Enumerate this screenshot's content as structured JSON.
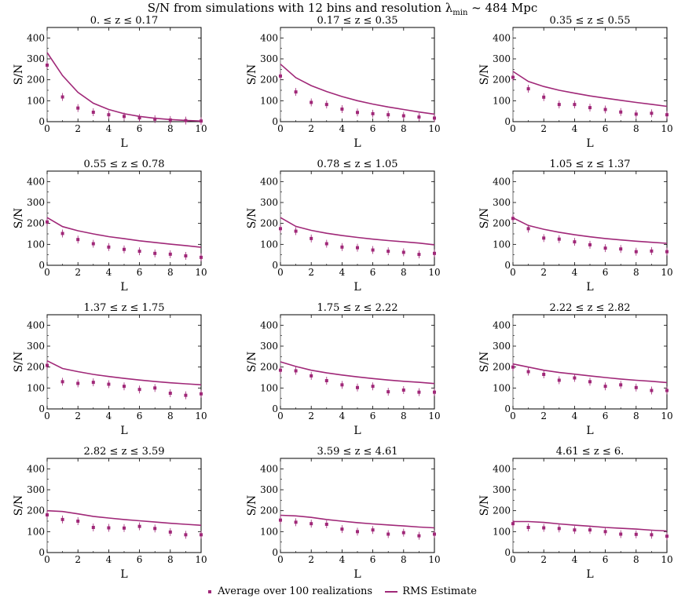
{
  "title": {
    "prefix": "S/N from simulations with 12 bins and resolution λ",
    "subscript": "min",
    "suffix": " ~ 484 Mpc"
  },
  "colors": {
    "series": "#a02878"
  },
  "legend": {
    "points_label": "Average over 100 realizations",
    "line_label": "RMS Estimate"
  },
  "chart_data": [
    {
      "type": "line",
      "title": "0. ≤  z ≤ 0.17",
      "xlabel": "L",
      "ylabel": "S/N",
      "xlim": [
        0,
        10
      ],
      "ylim": [
        0,
        450
      ],
      "x": [
        0,
        1,
        2,
        3,
        4,
        5,
        6,
        7,
        8,
        9,
        10
      ],
      "series": [
        {
          "name": "Average over 100 realizations",
          "kind": "points",
          "values": [
            270,
            118,
            65,
            45,
            33,
            25,
            18,
            12,
            8,
            5,
            3
          ]
        },
        {
          "name": "RMS Estimate",
          "kind": "line",
          "values": [
            330,
            220,
            140,
            88,
            58,
            38,
            25,
            16,
            10,
            6,
            3
          ]
        }
      ]
    },
    {
      "type": "line",
      "title": "0.17 ≤  z ≤ 0.35",
      "xlabel": "L",
      "ylabel": "S/N",
      "xlim": [
        0,
        10
      ],
      "ylim": [
        0,
        450
      ],
      "x": [
        0,
        1,
        2,
        3,
        4,
        5,
        6,
        7,
        8,
        9,
        10
      ],
      "series": [
        {
          "name": "Average over 100 realizations",
          "kind": "points",
          "values": [
            218,
            142,
            92,
            82,
            60,
            44,
            38,
            33,
            28,
            22,
            17
          ]
        },
        {
          "name": "RMS Estimate",
          "kind": "line",
          "values": [
            275,
            210,
            172,
            144,
            120,
            100,
            84,
            70,
            58,
            46,
            36
          ]
        }
      ]
    },
    {
      "type": "line",
      "title": "0.35 ≤  z ≤ 0.55",
      "xlabel": "L",
      "ylabel": "S/N",
      "xlim": [
        0,
        10
      ],
      "ylim": [
        0,
        450
      ],
      "x": [
        0,
        1,
        2,
        3,
        4,
        5,
        6,
        7,
        8,
        9,
        10
      ],
      "series": [
        {
          "name": "Average over 100 realizations",
          "kind": "points",
          "values": [
            212,
            157,
            117,
            82,
            82,
            67,
            58,
            46,
            36,
            40,
            33
          ]
        },
        {
          "name": "RMS Estimate",
          "kind": "line",
          "values": [
            240,
            192,
            168,
            150,
            136,
            123,
            112,
            102,
            92,
            83,
            73
          ]
        }
      ]
    },
    {
      "type": "line",
      "title": "0.55 ≤  z ≤ 0.78",
      "xlabel": "L",
      "ylabel": "S/N",
      "xlim": [
        0,
        10
      ],
      "ylim": [
        0,
        450
      ],
      "x": [
        0,
        1,
        2,
        3,
        4,
        5,
        6,
        7,
        8,
        9,
        10
      ],
      "series": [
        {
          "name": "Average over 100 realizations",
          "kind": "points",
          "values": [
            207,
            152,
            123,
            103,
            87,
            76,
            67,
            57,
            53,
            45,
            38
          ]
        },
        {
          "name": "RMS Estimate",
          "kind": "line",
          "values": [
            228,
            185,
            165,
            150,
            137,
            127,
            117,
            109,
            101,
            94,
            86
          ]
        }
      ]
    },
    {
      "type": "line",
      "title": "0.78 ≤  z ≤ 1.05",
      "xlabel": "L",
      "ylabel": "S/N",
      "xlim": [
        0,
        10
      ],
      "ylim": [
        0,
        450
      ],
      "x": [
        0,
        1,
        2,
        3,
        4,
        5,
        6,
        7,
        8,
        9,
        10
      ],
      "series": [
        {
          "name": "Average over 100 realizations",
          "kind": "points",
          "values": [
            175,
            163,
            128,
            103,
            87,
            84,
            73,
            67,
            62,
            52,
            57
          ]
        },
        {
          "name": "RMS Estimate",
          "kind": "line",
          "values": [
            228,
            186,
            167,
            153,
            142,
            133,
            125,
            118,
            112,
            106,
            98
          ]
        }
      ]
    },
    {
      "type": "line",
      "title": "1.05 ≤  z ≤ 1.37",
      "xlabel": "L",
      "ylabel": "S/N",
      "xlim": [
        0,
        10
      ],
      "ylim": [
        0,
        450
      ],
      "x": [
        0,
        1,
        2,
        3,
        4,
        5,
        6,
        7,
        8,
        9,
        10
      ],
      "series": [
        {
          "name": "Average over 100 realizations",
          "kind": "points",
          "values": [
            224,
            175,
            130,
            125,
            112,
            98,
            82,
            78,
            65,
            68,
            65
          ]
        },
        {
          "name": "RMS Estimate",
          "kind": "line",
          "values": [
            227,
            190,
            172,
            158,
            146,
            136,
            128,
            121,
            115,
            110,
            105
          ]
        }
      ]
    },
    {
      "type": "line",
      "title": "1.37 ≤  z ≤ 1.75",
      "xlabel": "L",
      "ylabel": "S/N",
      "xlim": [
        0,
        10
      ],
      "ylim": [
        0,
        450
      ],
      "x": [
        0,
        1,
        2,
        3,
        4,
        5,
        6,
        7,
        8,
        9,
        10
      ],
      "series": [
        {
          "name": "Average over 100 realizations",
          "kind": "points",
          "values": [
            208,
            130,
            122,
            127,
            118,
            108,
            93,
            100,
            75,
            65,
            72
          ]
        },
        {
          "name": "RMS Estimate",
          "kind": "line",
          "values": [
            230,
            193,
            178,
            165,
            155,
            146,
            138,
            131,
            125,
            120,
            115
          ]
        }
      ]
    },
    {
      "type": "line",
      "title": "1.75 ≤  z ≤ 2.22",
      "xlabel": "L",
      "ylabel": "S/N",
      "xlim": [
        0,
        10
      ],
      "ylim": [
        0,
        450
      ],
      "x": [
        0,
        1,
        2,
        3,
        4,
        5,
        6,
        7,
        8,
        9,
        10
      ],
      "series": [
        {
          "name": "Average over 100 realizations",
          "kind": "points",
          "values": [
            185,
            182,
            158,
            135,
            115,
            102,
            108,
            82,
            90,
            80,
            80
          ]
        },
        {
          "name": "RMS Estimate",
          "kind": "line",
          "values": [
            225,
            203,
            185,
            172,
            162,
            153,
            145,
            138,
            132,
            127,
            121
          ]
        }
      ]
    },
    {
      "type": "line",
      "title": "2.22 ≤  z ≤ 2.82",
      "xlabel": "L",
      "ylabel": "S/N",
      "xlim": [
        0,
        10
      ],
      "ylim": [
        0,
        450
      ],
      "x": [
        0,
        1,
        2,
        3,
        4,
        5,
        6,
        7,
        8,
        9,
        10
      ],
      "series": [
        {
          "name": "Average over 100 realizations",
          "kind": "points",
          "values": [
            200,
            178,
            165,
            137,
            148,
            130,
            108,
            115,
            102,
            88,
            88
          ]
        },
        {
          "name": "RMS Estimate",
          "kind": "line",
          "values": [
            215,
            200,
            185,
            174,
            166,
            158,
            150,
            143,
            137,
            132,
            126
          ]
        }
      ]
    },
    {
      "type": "line",
      "title": "2.82 ≤  z ≤ 3.59",
      "xlabel": "L",
      "ylabel": "S/N",
      "xlim": [
        0,
        10
      ],
      "ylim": [
        0,
        450
      ],
      "x": [
        0,
        1,
        2,
        3,
        4,
        5,
        6,
        7,
        8,
        9,
        10
      ],
      "series": [
        {
          "name": "Average over 100 realizations",
          "kind": "points",
          "values": [
            180,
            158,
            150,
            120,
            118,
            117,
            125,
            115,
            98,
            85,
            85
          ]
        },
        {
          "name": "RMS Estimate",
          "kind": "line",
          "values": [
            200,
            196,
            185,
            173,
            165,
            158,
            152,
            146,
            140,
            135,
            130
          ]
        }
      ]
    },
    {
      "type": "line",
      "title": "3.59 ≤  z ≤ 4.61",
      "xlabel": "L",
      "ylabel": "S/N",
      "xlim": [
        0,
        10
      ],
      "ylim": [
        0,
        450
      ],
      "x": [
        0,
        1,
        2,
        3,
        4,
        5,
        6,
        7,
        8,
        9,
        10
      ],
      "series": [
        {
          "name": "Average over 100 realizations",
          "kind": "points",
          "values": [
            155,
            145,
            138,
            135,
            112,
            100,
            108,
            88,
            95,
            80,
            88
          ]
        },
        {
          "name": "RMS Estimate",
          "kind": "line",
          "values": [
            178,
            175,
            168,
            158,
            150,
            143,
            137,
            132,
            127,
            122,
            118
          ]
        }
      ]
    },
    {
      "type": "line",
      "title": "4.61 ≤  z ≤ 6.",
      "xlabel": "L",
      "ylabel": "S/N",
      "xlim": [
        0,
        10
      ],
      "ylim": [
        0,
        450
      ],
      "x": [
        0,
        1,
        2,
        3,
        4,
        5,
        6,
        7,
        8,
        9,
        10
      ],
      "series": [
        {
          "name": "Average over 100 realizations",
          "kind": "points",
          "values": [
            138,
            120,
            118,
            115,
            108,
            108,
            100,
            88,
            87,
            85,
            78
          ]
        },
        {
          "name": "RMS Estimate",
          "kind": "line",
          "values": [
            148,
            148,
            144,
            137,
            131,
            126,
            120,
            116,
            112,
            107,
            103
          ]
        }
      ]
    }
  ]
}
